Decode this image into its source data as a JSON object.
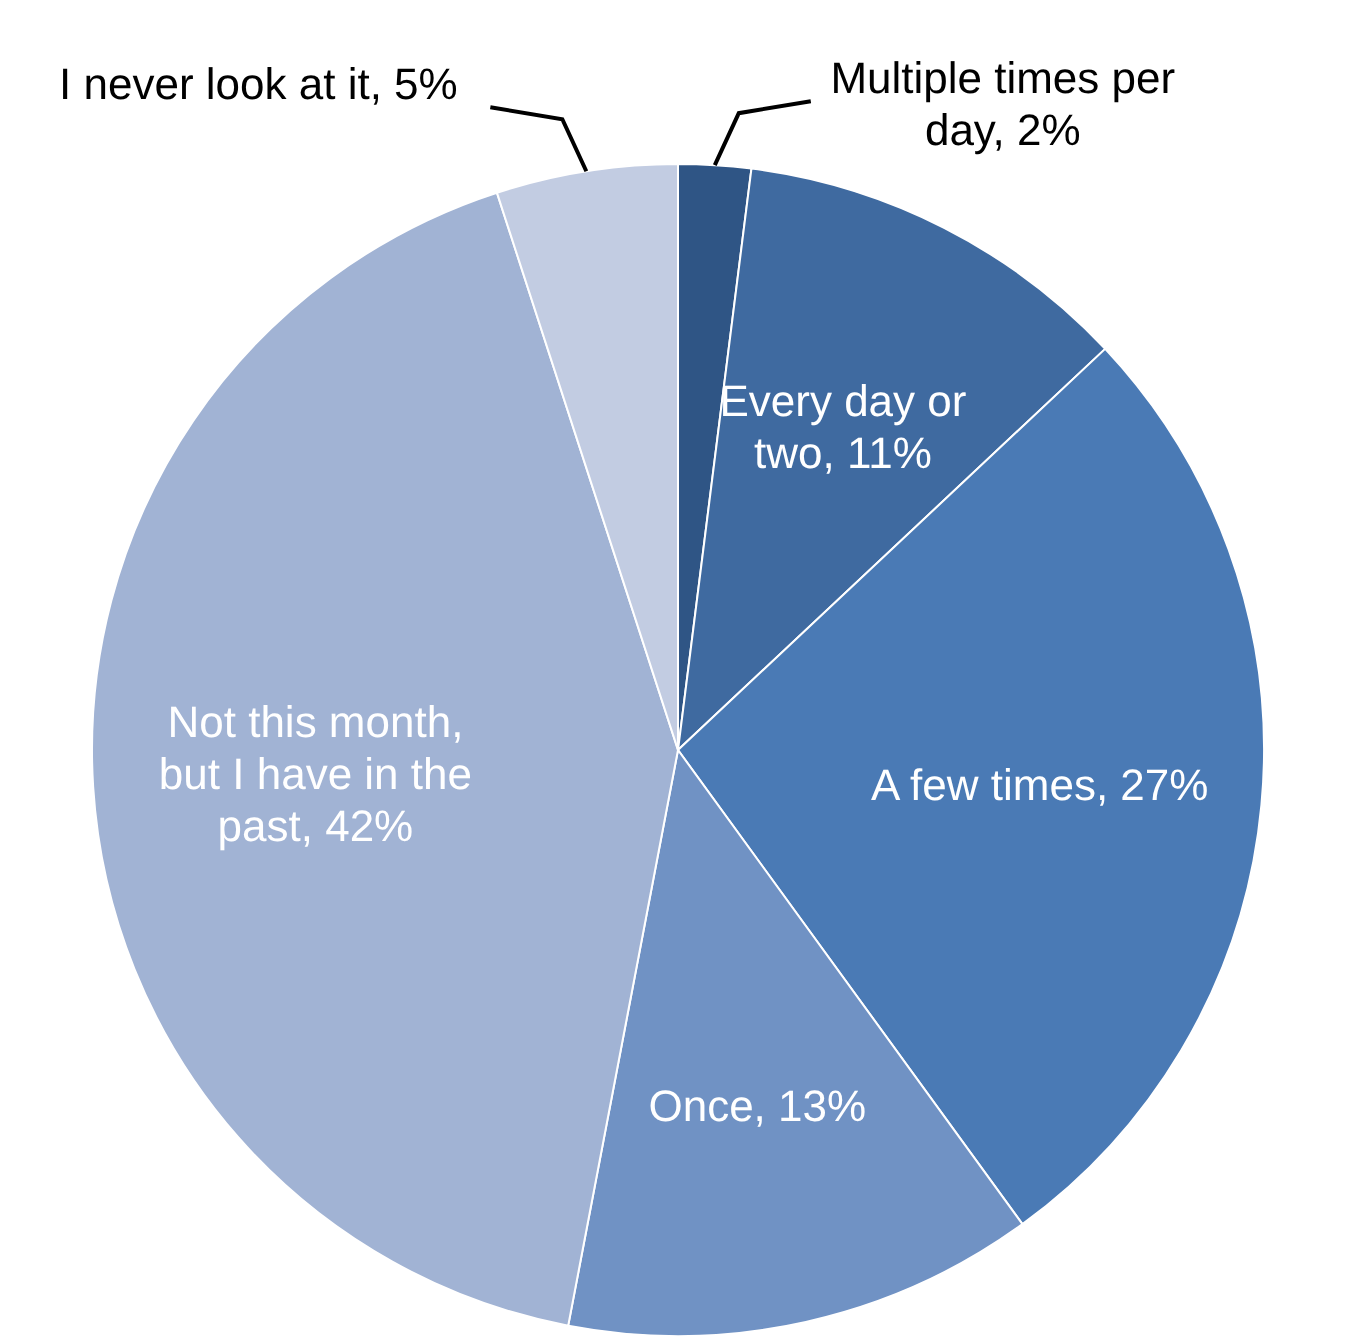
{
  "chart_data": {
    "type": "pie",
    "categories": [
      "Multiple times per day",
      "Every day or two",
      "A few times",
      "Once",
      "Not this month, but I have in the past",
      "I never look at it"
    ],
    "values": [
      2,
      11,
      27,
      13,
      42,
      5
    ],
    "value_labels": [
      "2%",
      "11%",
      "27%",
      "13%",
      "42%",
      "5%"
    ],
    "colors": [
      "#2f5585",
      "#3f6aa0",
      "#4a7ab5",
      "#7092c4",
      "#a1b3d4",
      "#c2cce2"
    ]
  }
}
